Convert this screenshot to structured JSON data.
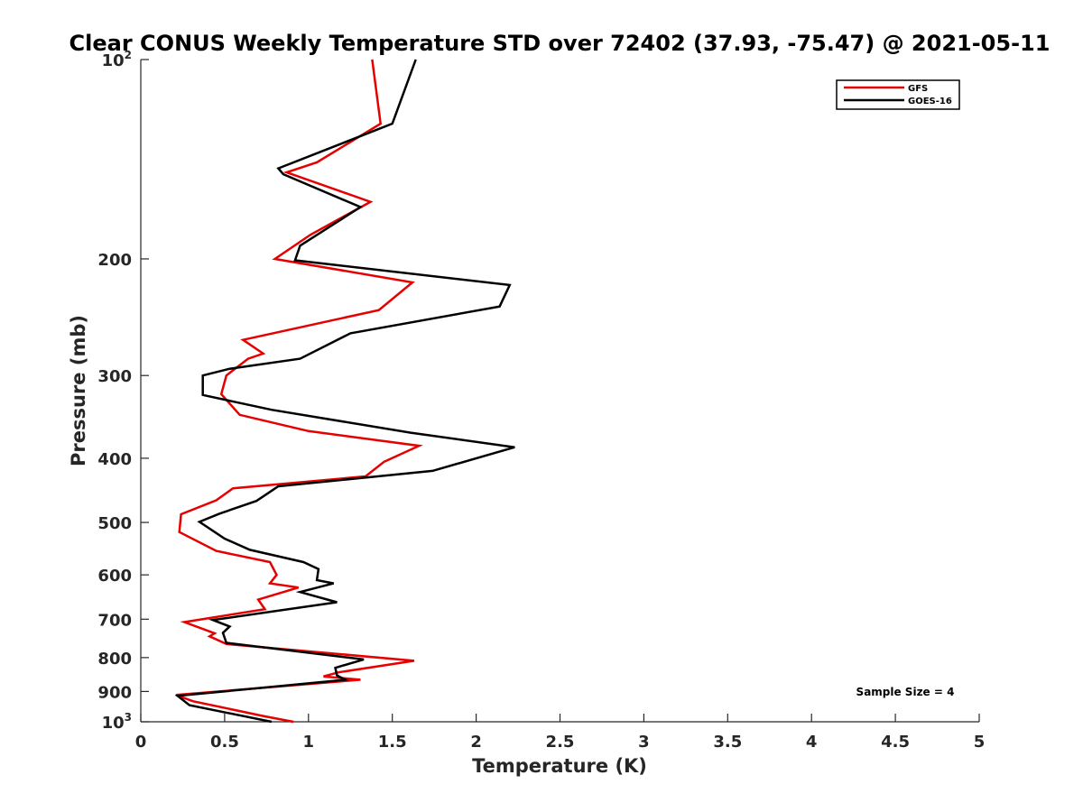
{
  "chart_data": {
    "type": "line",
    "title": "Clear CONUS Weekly Temperature STD over 72402 (37.93, -75.47) @ 2021-05-11",
    "xlabel": "Temperature (K)",
    "ylabel": "Pressure (mb)",
    "xlim": [
      0,
      5
    ],
    "ylim": [
      100,
      1000
    ],
    "y_scale": "log",
    "y_reversed": true,
    "grid": false,
    "legend_location": "top-right",
    "x_ticks": [
      {
        "value": 0,
        "label": "0"
      },
      {
        "value": 0.5,
        "label": "0.5"
      },
      {
        "value": 1,
        "label": "1"
      },
      {
        "value": 1.5,
        "label": "1.5"
      },
      {
        "value": 2,
        "label": "2"
      },
      {
        "value": 2.5,
        "label": "2.5"
      },
      {
        "value": 3,
        "label": "3"
      },
      {
        "value": 3.5,
        "label": "3.5"
      },
      {
        "value": 4,
        "label": "4"
      },
      {
        "value": 4.5,
        "label": "4.5"
      },
      {
        "value": 5,
        "label": "5"
      }
    ],
    "y_ticks": [
      {
        "value": 100,
        "base": "10",
        "exp": "2"
      },
      {
        "value": 200,
        "label": "200"
      },
      {
        "value": 300,
        "label": "300"
      },
      {
        "value": 400,
        "label": "400"
      },
      {
        "value": 500,
        "label": "500"
      },
      {
        "value": 600,
        "label": "600"
      },
      {
        "value": 700,
        "label": "700"
      },
      {
        "value": 800,
        "label": "800"
      },
      {
        "value": 900,
        "label": "900"
      },
      {
        "value": 1000,
        "base": "10",
        "exp": "3"
      }
    ],
    "series": [
      {
        "name": "GFS",
        "color": "#e60000",
        "points": [
          [
            1.38,
            100
          ],
          [
            1.43,
            125
          ],
          [
            1.05,
            143
          ],
          [
            0.87,
            148
          ],
          [
            1.37,
            164
          ],
          [
            1.01,
            184
          ],
          [
            0.8,
            200
          ],
          [
            1.62,
            217
          ],
          [
            1.42,
            239
          ],
          [
            0.61,
            265
          ],
          [
            0.73,
            278
          ],
          [
            0.64,
            283
          ],
          [
            0.51,
            300
          ],
          [
            0.48,
            320
          ],
          [
            0.59,
            344
          ],
          [
            1.0,
            364
          ],
          [
            1.66,
            383
          ],
          [
            1.45,
            405
          ],
          [
            1.34,
            426
          ],
          [
            0.55,
            444
          ],
          [
            0.45,
            463
          ],
          [
            0.24,
            486
          ],
          [
            0.23,
            517
          ],
          [
            0.45,
            552
          ],
          [
            0.77,
            574
          ],
          [
            0.81,
            600
          ],
          [
            0.77,
            618
          ],
          [
            0.94,
            627
          ],
          [
            0.7,
            654
          ],
          [
            0.74,
            676
          ],
          [
            0.26,
            707
          ],
          [
            0.44,
            735
          ],
          [
            0.41,
            743
          ],
          [
            0.51,
            763
          ],
          [
            1.63,
            809
          ],
          [
            1.18,
            842
          ],
          [
            1.09,
            854
          ],
          [
            1.31,
            864
          ],
          [
            0.21,
            911
          ],
          [
            0.31,
            931
          ],
          [
            0.73,
            980
          ],
          [
            0.91,
            1000
          ]
        ]
      },
      {
        "name": "GOES-16",
        "color": "#000000",
        "points": [
          [
            1.64,
            100
          ],
          [
            1.5,
            125
          ],
          [
            0.82,
            146
          ],
          [
            0.85,
            149
          ],
          [
            1.31,
            167
          ],
          [
            0.95,
            191
          ],
          [
            0.92,
            201
          ],
          [
            2.2,
            219
          ],
          [
            2.14,
            236
          ],
          [
            1.25,
            259
          ],
          [
            0.95,
            283
          ],
          [
            0.53,
            293
          ],
          [
            0.37,
            300
          ],
          [
            0.37,
            321
          ],
          [
            0.78,
            338
          ],
          [
            1.61,
            366
          ],
          [
            2.23,
            385
          ],
          [
            1.74,
            418
          ],
          [
            0.82,
            441
          ],
          [
            0.69,
            464
          ],
          [
            0.47,
            485
          ],
          [
            0.35,
            499
          ],
          [
            0.5,
            529
          ],
          [
            0.65,
            550
          ],
          [
            0.97,
            574
          ],
          [
            1.06,
            588
          ],
          [
            1.05,
            611
          ],
          [
            1.15,
            618
          ],
          [
            0.95,
            637
          ],
          [
            1.17,
            660
          ],
          [
            0.43,
            702
          ],
          [
            0.53,
            718
          ],
          [
            0.49,
            734
          ],
          [
            0.51,
            760
          ],
          [
            1.33,
            805
          ],
          [
            1.16,
            829
          ],
          [
            1.17,
            851
          ],
          [
            1.22,
            864
          ],
          [
            0.22,
            914
          ],
          [
            0.29,
            944
          ],
          [
            0.78,
            1000
          ]
        ]
      }
    ],
    "annotation": "Sample Size = 4"
  }
}
